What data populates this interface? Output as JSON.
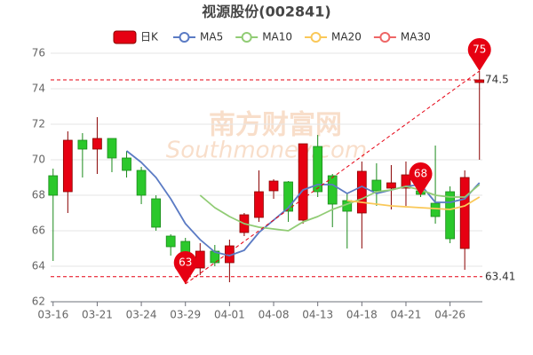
{
  "chart_data": {
    "type": "candlestick",
    "title": "视源股份(002841)",
    "watermark": "南方财富网",
    "watermark_sub": "Southmoney.com",
    "categories": [
      "03-16",
      null,
      null,
      "03-21",
      null,
      null,
      "03-24",
      null,
      null,
      "03-29",
      null,
      null,
      "04-01",
      null,
      null,
      "04-08",
      null,
      null,
      "04-13",
      null,
      null,
      "04-18",
      null,
      null,
      "04-21",
      null,
      null,
      "04-26",
      null,
      null
    ],
    "candle_name": "日K",
    "up_color": "#e60012",
    "down_color": "#2bc82b",
    "open": [
      69.1,
      68.2,
      71.1,
      70.6,
      71.2,
      70.1,
      69.4,
      67.8,
      65.7,
      65.4,
      63.9,
      64.85,
      64.2,
      65.9,
      66.75,
      68.25,
      68.75,
      66.6,
      70.75,
      69.1,
      67.7,
      67.0,
      68.85,
      68.4,
      68.4,
      68.25,
      67.55,
      68.2,
      65.0,
      74.35
    ],
    "close": [
      68.0,
      71.1,
      70.6,
      71.2,
      70.1,
      69.4,
      68.0,
      66.2,
      65.1,
      64.2,
      64.85,
      64.2,
      65.15,
      66.9,
      68.2,
      68.8,
      67.1,
      70.9,
      68.2,
      67.5,
      67.1,
      69.35,
      68.25,
      68.7,
      69.15,
      68.05,
      66.8,
      65.55,
      69.0,
      74.5
    ],
    "high": [
      69.5,
      71.6,
      71.5,
      72.4,
      71.2,
      70.5,
      69.6,
      68.0,
      65.8,
      65.6,
      65.3,
      65.2,
      65.5,
      67.0,
      69.4,
      68.9,
      68.8,
      70.9,
      71.4,
      69.2,
      68.1,
      69.9,
      69.8,
      69.7,
      69.9,
      69.6,
      70.8,
      68.5,
      69.4,
      75
    ],
    "low": [
      64.3,
      67.0,
      69.0,
      69.2,
      69.3,
      69.0,
      67.5,
      66.0,
      64.6,
      63,
      63.5,
      64.0,
      63.1,
      65.7,
      66.5,
      67.8,
      66.5,
      66.4,
      67.9,
      66.2,
      65.0,
      65.0,
      67.4,
      67.2,
      67.4,
      67.9,
      66.4,
      65.3,
      63.8,
      70.0
    ],
    "series": [
      {
        "name": "MA5",
        "color": "#5b7bc4",
        "values": [
          null,
          null,
          null,
          null,
          null,
          70.5,
          69.85,
          69.0,
          67.8,
          66.4,
          65.5,
          64.8,
          64.6,
          64.9,
          65.9,
          66.6,
          67.3,
          68.3,
          68.6,
          68.6,
          68.1,
          68.5,
          68.1,
          68.3,
          68.5,
          68.6,
          67.6,
          67.6,
          67.8,
          68.7
        ]
      },
      {
        "name": "MA10",
        "color": "#91cc75",
        "values": [
          null,
          null,
          null,
          null,
          null,
          null,
          null,
          null,
          null,
          null,
          68.0,
          67.3,
          66.8,
          66.4,
          66.2,
          66.1,
          66.0,
          66.5,
          66.8,
          67.2,
          67.5,
          67.8,
          68.2,
          68.3,
          68.5,
          68.3,
          68.0,
          67.9,
          67.9,
          68.6
        ]
      },
      {
        "name": "MA20",
        "color": "#fac858",
        "values": [
          null,
          null,
          null,
          null,
          null,
          null,
          null,
          null,
          null,
          null,
          null,
          null,
          null,
          null,
          null,
          null,
          null,
          null,
          null,
          null,
          67.7,
          67.6,
          67.5,
          67.4,
          67.35,
          67.3,
          67.25,
          67.2,
          67.4,
          67.9
        ]
      },
      {
        "name": "MA30",
        "color": "#ee6666",
        "values": [
          null,
          null,
          null,
          null,
          null,
          null,
          null,
          null,
          null,
          null,
          null,
          null,
          null,
          null,
          null,
          null,
          null,
          null,
          null,
          null,
          null,
          null,
          null,
          null,
          null,
          null,
          null,
          null,
          null,
          null
        ]
      }
    ],
    "mark_points": [
      {
        "value": 63,
        "index": 9
      },
      {
        "value": 68,
        "index": 25
      },
      {
        "value": 75,
        "index": 29
      }
    ],
    "mark_lines": [
      74.5,
      63.41
    ],
    "ylim": [
      62,
      76
    ],
    "yticks": [
      62,
      64,
      66,
      68,
      70,
      72,
      74,
      76
    ],
    "grid": true
  }
}
